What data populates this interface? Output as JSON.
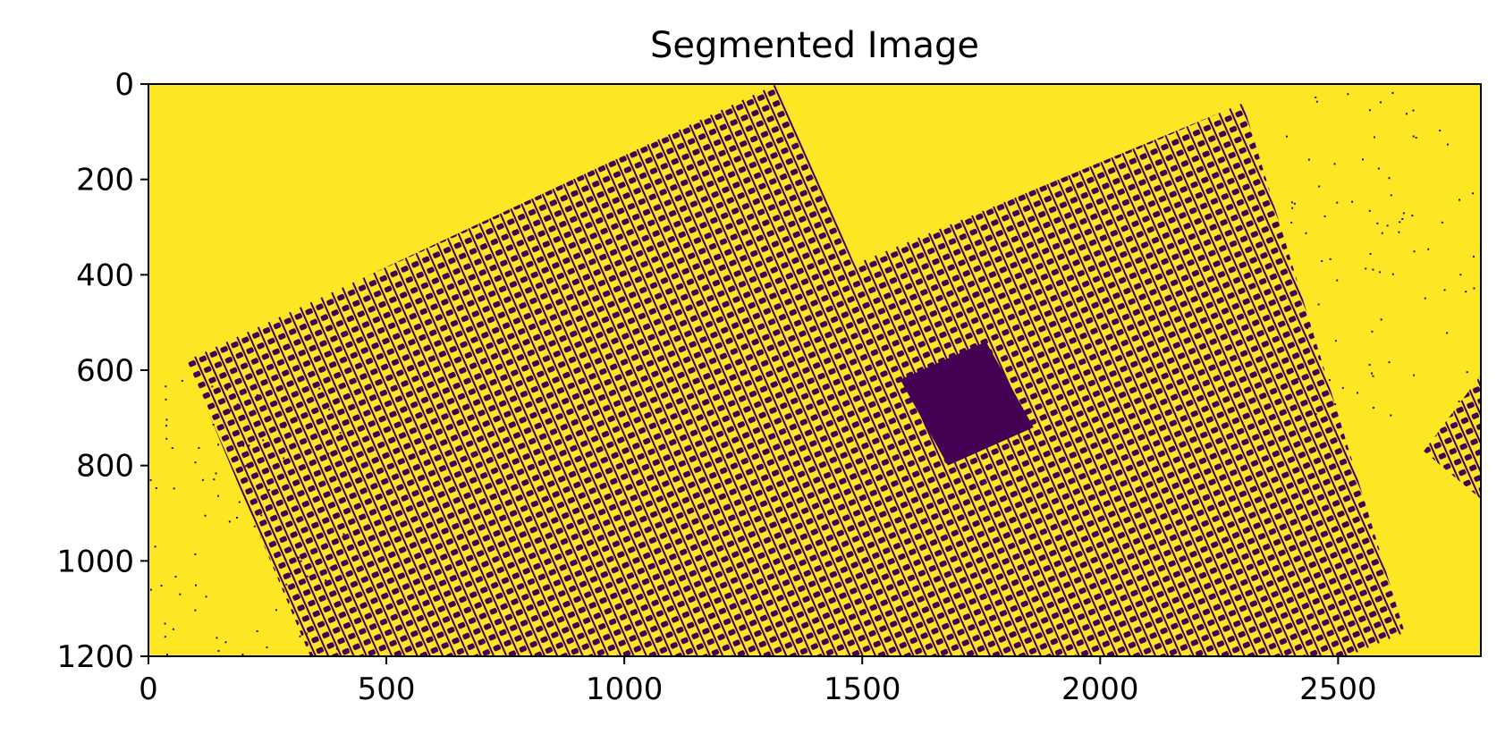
{
  "chart_data": {
    "type": "heatmap",
    "title": "Segmented Image",
    "xlabel": "",
    "ylabel": "",
    "xlim": [
      0,
      2800
    ],
    "ylim": [
      1200,
      0
    ],
    "x_ticks": [
      "0",
      "500",
      "1000",
      "1500",
      "2000",
      "2500"
    ],
    "x_tick_values": [
      0,
      500,
      1000,
      1500,
      2000,
      2500
    ],
    "y_ticks": [
      "0",
      "200",
      "400",
      "600",
      "800",
      "1000",
      "1200"
    ],
    "y_tick_values": [
      0,
      200,
      400,
      600,
      800,
      1000,
      1200
    ],
    "colormap": "viridis",
    "classes": [
      {
        "value": 0,
        "color": "#440154"
      },
      {
        "value": 1,
        "color": "#fde725"
      }
    ],
    "regions": [
      {
        "label": "left tilted urban block (class 0)",
        "polygon": [
          [
            80,
            580
          ],
          [
            1320,
            0
          ],
          [
            1840,
            1200
          ],
          [
            340,
            1200
          ]
        ]
      },
      {
        "label": "right tilted urban block (class 0)",
        "polygon": [
          [
            1430,
            400
          ],
          [
            2300,
            40
          ],
          [
            2640,
            1150
          ],
          [
            2520,
            1200
          ],
          [
            1680,
            1200
          ]
        ]
      },
      {
        "label": "dense square (class 0)",
        "polygon": [
          [
            1580,
            620
          ],
          [
            1760,
            540
          ],
          [
            1860,
            720
          ],
          [
            1680,
            800
          ]
        ]
      },
      {
        "label": "right edge fragment (class 0)",
        "polygon": [
          [
            2680,
            770
          ],
          [
            2800,
            610
          ],
          [
            2800,
            870
          ]
        ]
      }
    ],
    "grid": false
  }
}
